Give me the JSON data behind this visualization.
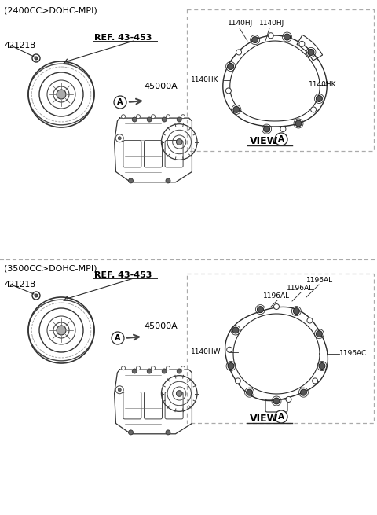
{
  "bg_color": "#ffffff",
  "line_color": "#2a2a2a",
  "text_color": "#000000",
  "gray_color": "#888888",
  "section1_header": "(2400CC>DOHC-MPI)",
  "section2_header": "(3500CC>DOHC-MPI)",
  "part_42121B": "42121B",
  "part_ref": "REF. 43-453",
  "part_45000A": "45000A",
  "figsize": [
    4.8,
    6.55
  ],
  "dpi": 100
}
